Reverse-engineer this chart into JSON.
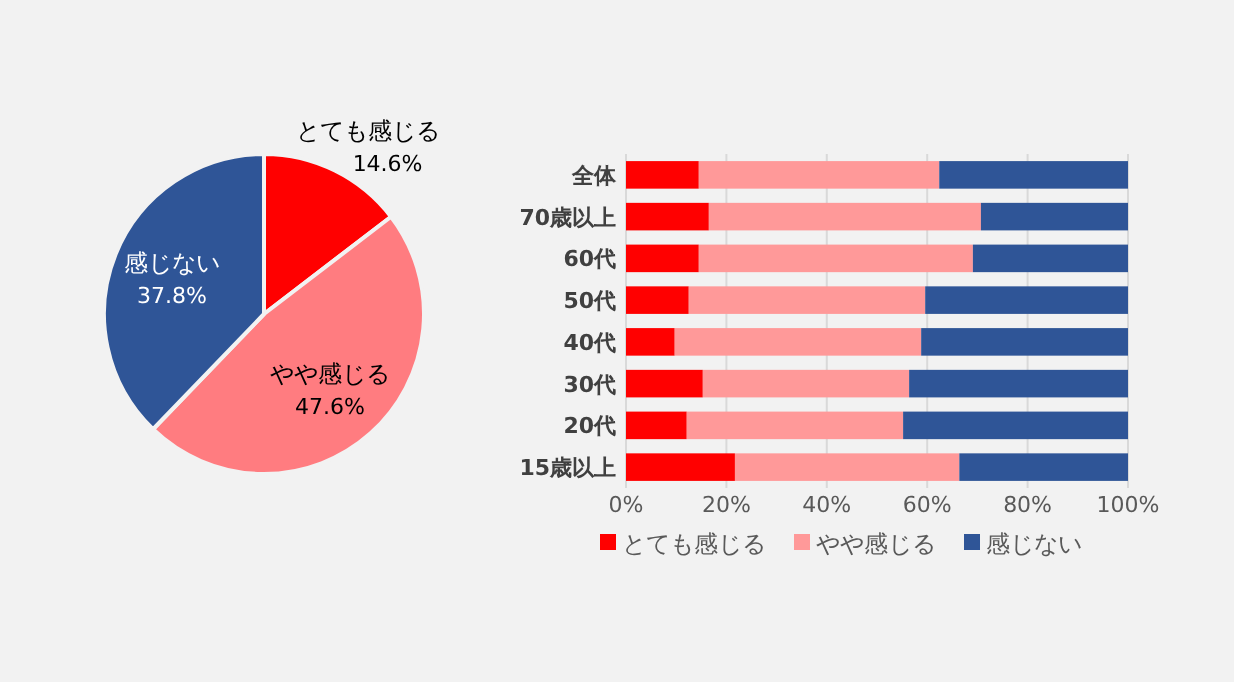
{
  "chart_data": [
    {
      "type": "pie",
      "categories": [
        "とても感じる",
        "やや感じる",
        "感じない"
      ],
      "values": [
        14.6,
        47.6,
        37.8
      ],
      "colors": [
        "#ff0000",
        "#ff7c80",
        "#2f5597"
      ],
      "value_labels": [
        "14.6%",
        "47.6%",
        "37.8%"
      ]
    },
    {
      "type": "bar",
      "orientation": "horizontal",
      "stacked": true,
      "categories": [
        "全体",
        "70歳以上",
        "60代",
        "50代",
        "40代",
        "30代",
        "20代",
        "15歳以上"
      ],
      "series": [
        {
          "name": "とても感じる",
          "color": "#ff0000",
          "values": [
            14.5,
            16.5,
            14.5,
            12.5,
            9.7,
            15.3,
            12.1,
            21.7
          ]
        },
        {
          "name": "やや感じる",
          "color": "#ff9999",
          "values": [
            47.9,
            54.2,
            54.6,
            47.1,
            49.1,
            41.1,
            43.1,
            44.7
          ]
        },
        {
          "name": "感じない",
          "color": "#2f5597",
          "values": [
            37.6,
            29.3,
            30.9,
            40.4,
            41.2,
            43.6,
            44.8,
            33.6
          ]
        }
      ],
      "xlim": [
        0,
        100
      ],
      "xticks": [
        {
          "value": 0,
          "label": "0%"
        },
        {
          "value": 20,
          "label": "20%"
        },
        {
          "value": 40,
          "label": "40%"
        },
        {
          "value": 60,
          "label": "60%"
        },
        {
          "value": 80,
          "label": "80%"
        },
        {
          "value": 100,
          "label": "100%"
        }
      ],
      "grid": "x",
      "legend": "bottom"
    }
  ]
}
